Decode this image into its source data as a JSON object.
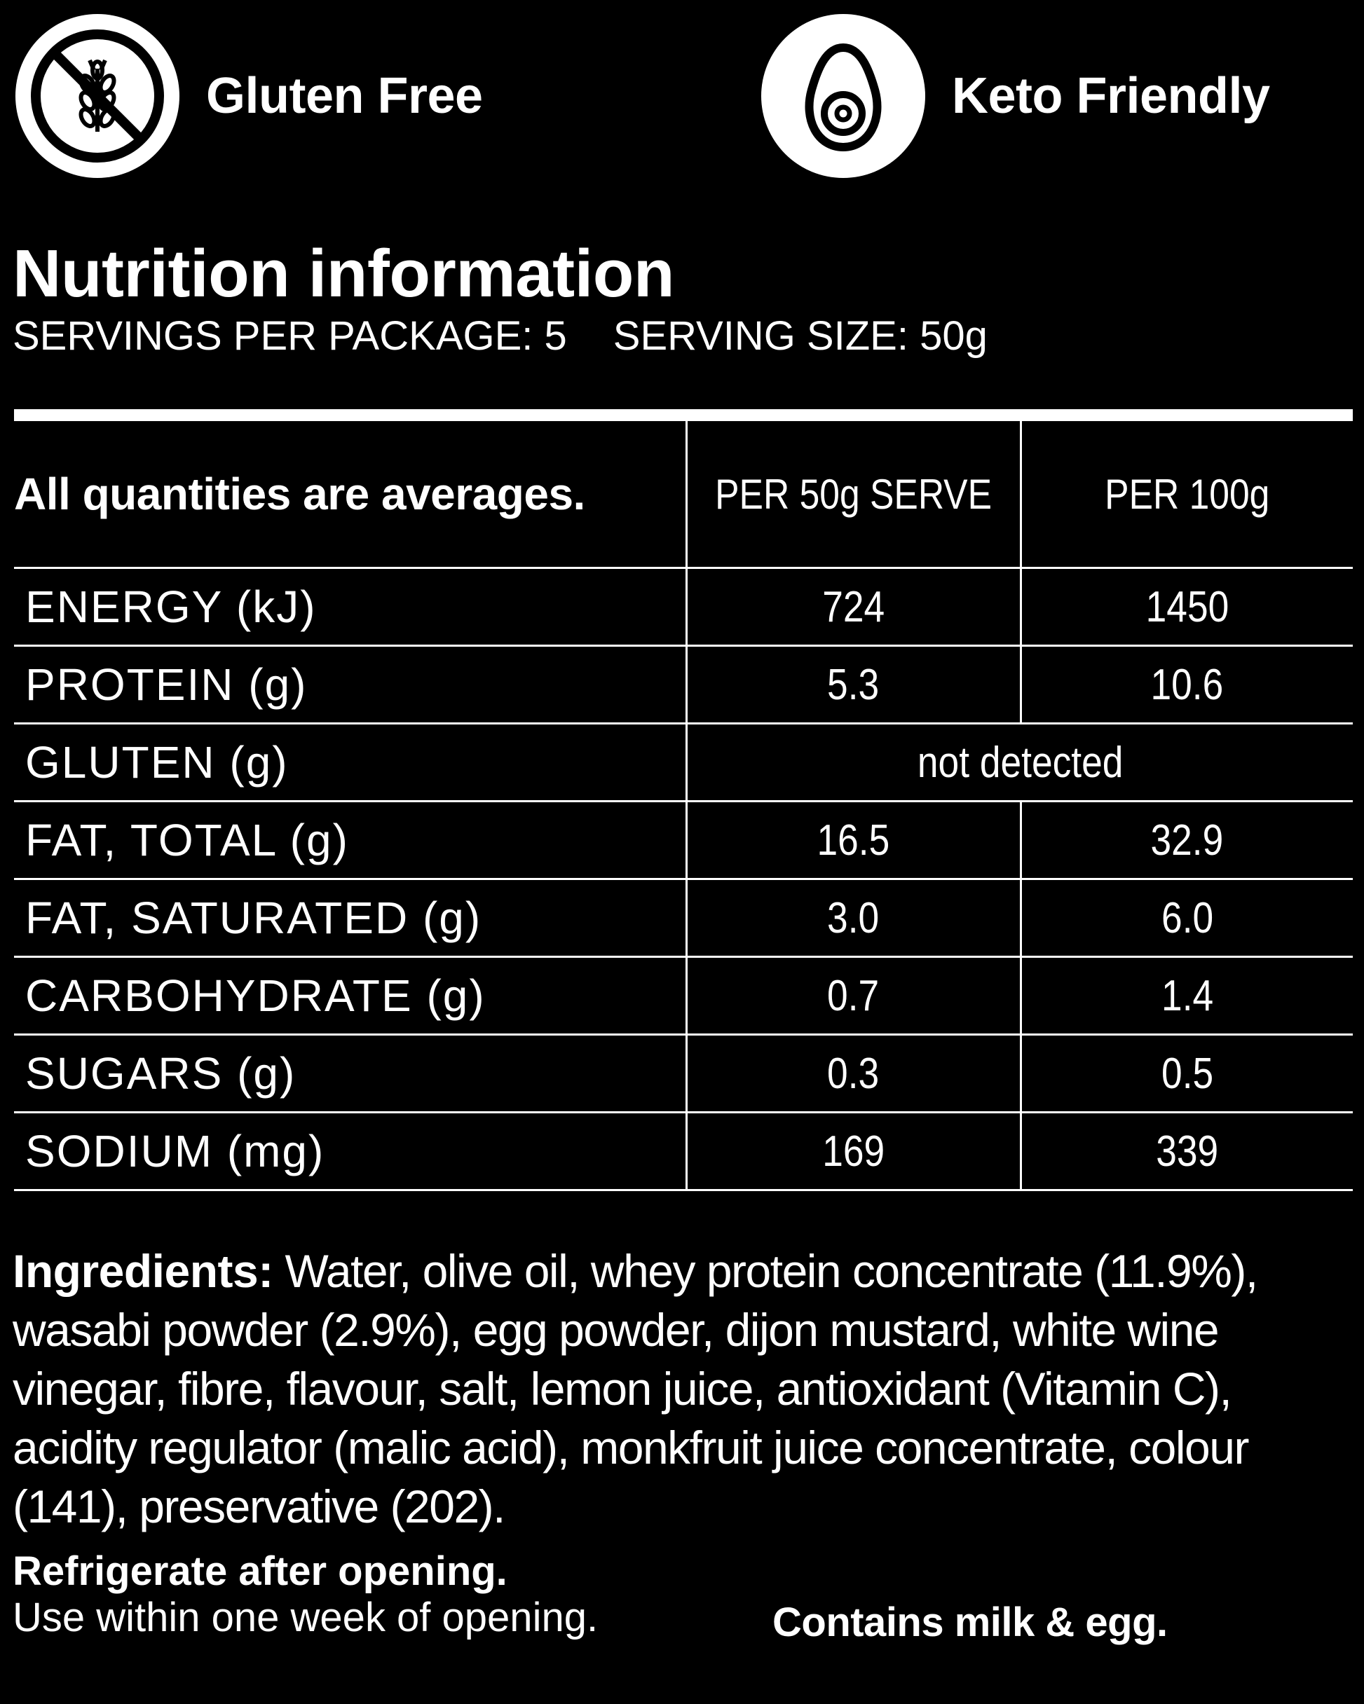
{
  "badges": {
    "gluten_free": {
      "label": "Gluten Free",
      "icon": "no-wheat-icon"
    },
    "keto_friendly": {
      "label": "Keto Friendly",
      "icon": "avocado-icon"
    }
  },
  "nutrition": {
    "title": "Nutrition information",
    "servings_per_package": "SERVINGS PER PACKAGE: 5",
    "serving_size": "SERVING SIZE: 50g",
    "header": {
      "lead": "All quantities are averages.",
      "col_serve": "PER 50g SERVE",
      "col_100g": "PER 100g"
    },
    "rows": [
      {
        "name": "ENERGY (kJ)",
        "serve": "724",
        "per100": "1450"
      },
      {
        "name": "PROTEIN (g)",
        "serve": "5.3",
        "per100": "10.6"
      },
      {
        "name": "GLUTEN (g)",
        "merged": "not detected"
      },
      {
        "name": "FAT, TOTAL (g)",
        "serve": "16.5",
        "per100": "32.9"
      },
      {
        "name": "FAT, SATURATED (g)",
        "serve": "3.0",
        "per100": "6.0"
      },
      {
        "name": "CARBOHYDRATE (g)",
        "serve": "0.7",
        "per100": "1.4"
      },
      {
        "name": "SUGARS (g)",
        "serve": "0.3",
        "per100": "0.5"
      },
      {
        "name": "SODIUM (mg)",
        "serve": "169",
        "per100": "339"
      }
    ]
  },
  "ingredients": {
    "label": "Ingredients:",
    "text": " Water, olive oil, whey protein concentrate (11.9%), wasabi powder (2.9%), egg powder, dijon mustard, white wine vinegar, fibre, flavour, salt, lemon juice, antioxidant (Vitamin C), acidity regulator (malic acid), monkfruit juice concentrate, colour (141), preservative (202)."
  },
  "storage": {
    "line1": "Refrigerate after opening.",
    "line2": "Use within one week of opening."
  },
  "allergen": "Contains milk & egg.",
  "colors": {
    "background": "#000000",
    "foreground": "#ffffff"
  }
}
